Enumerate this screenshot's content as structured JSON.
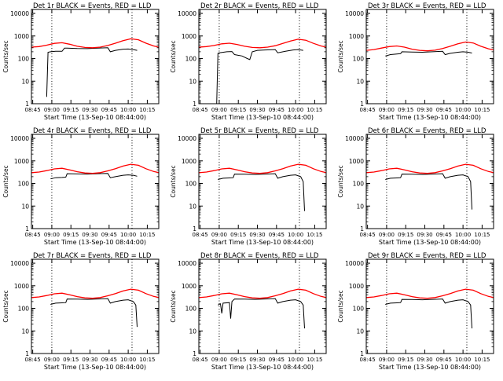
{
  "figure": {
    "panel_title_suffix": "BLACK = Events, RED = LLD",
    "ylabel": "Counts/sec",
    "xlabel": "Start Time (13-Sep-10 08:44:00)",
    "y_ticks": [
      "1",
      "10",
      "100",
      "1000",
      "10000"
    ],
    "x_ticks": [
      "08:45",
      "09:00",
      "09:15",
      "09:30",
      "09:45",
      "10:00",
      "10:15"
    ],
    "colors": {
      "events": "#000000",
      "lld": "#ff0000",
      "axes": "#000000"
    }
  },
  "chart_data": [
    {
      "type": "line",
      "title": "Det 1r BLACK = Events, RED = LLD",
      "xlabel": "Start Time (13-Sep-10 08:44:00)",
      "ylabel": "Counts/sec",
      "ylim": [
        1,
        15000
      ],
      "y_scale": "log",
      "xlim": [
        "08:44",
        "10:24"
      ],
      "x_ticks": [
        "08:45",
        "09:00",
        "09:15",
        "09:30",
        "09:45",
        "10:00",
        "10:15"
      ],
      "vlines": [
        "09:00",
        "10:03"
      ],
      "series": [
        {
          "name": "BLACK = Events",
          "color": "#000000",
          "x": [
            "08:56",
            "08:57",
            "08:59",
            "09:03",
            "09:08",
            "09:10",
            "09:12",
            "09:20",
            "09:28",
            "09:36",
            "09:44",
            "09:46",
            "09:50",
            "09:56",
            "10:00",
            "10:04",
            "10:07"
          ],
          "y": [
            2,
            190,
            200,
            210,
            210,
            290,
            290,
            280,
            275,
            290,
            300,
            200,
            230,
            260,
            265,
            250,
            230
          ]
        },
        {
          "name": "RED = LLD",
          "color": "#ff0000",
          "x": [
            "08:44",
            "08:50",
            "08:56",
            "09:02",
            "09:08",
            "09:14",
            "09:20",
            "09:26",
            "09:32",
            "09:38",
            "09:44",
            "09:50",
            "09:56",
            "10:02",
            "10:08",
            "10:14",
            "10:20",
            "10:24"
          ],
          "y": [
            320,
            340,
            390,
            470,
            500,
            430,
            350,
            310,
            300,
            320,
            380,
            480,
            620,
            750,
            680,
            480,
            360,
            320
          ]
        }
      ]
    },
    {
      "type": "line",
      "title": "Det 2r BLACK = Events, RED = LLD",
      "xlabel": "Start Time (13-Sep-10 08:44:00)",
      "ylabel": "Counts/sec",
      "ylim": [
        1,
        15000
      ],
      "y_scale": "log",
      "xlim": [
        "08:44",
        "10:24"
      ],
      "x_ticks": [
        "08:45",
        "09:00",
        "09:15",
        "09:30",
        "09:45",
        "10:00",
        "10:15"
      ],
      "vlines": [
        "09:00",
        "10:03"
      ],
      "series": [
        {
          "name": "BLACK = Events",
          "color": "#000000",
          "x": [
            "08:58",
            "08:59",
            "09:00",
            "09:06",
            "09:10",
            "09:12",
            "09:18",
            "09:22",
            "09:24",
            "09:26",
            "09:30",
            "09:36",
            "09:44",
            "09:46",
            "09:52",
            "09:58",
            "10:02",
            "10:06"
          ],
          "y": [
            1,
            170,
            180,
            200,
            205,
            150,
            130,
            100,
            90,
            200,
            230,
            240,
            250,
            180,
            210,
            240,
            250,
            230
          ]
        },
        {
          "name": "RED = LLD",
          "color": "#ff0000",
          "x": [
            "08:44",
            "08:50",
            "08:56",
            "09:02",
            "09:08",
            "09:14",
            "09:20",
            "09:26",
            "09:32",
            "09:38",
            "09:44",
            "09:50",
            "09:56",
            "10:02",
            "10:08",
            "10:14",
            "10:20",
            "10:24"
          ],
          "y": [
            320,
            340,
            380,
            450,
            480,
            420,
            350,
            310,
            300,
            320,
            370,
            470,
            600,
            720,
            650,
            470,
            360,
            320
          ]
        }
      ]
    },
    {
      "type": "line",
      "title": "Det 3r BLACK = Events, RED = LLD",
      "xlabel": "Start Time (13-Sep-10 08:44:00)",
      "ylabel": "Counts/sec",
      "ylim": [
        1,
        15000
      ],
      "y_scale": "log",
      "xlim": [
        "08:44",
        "10:24"
      ],
      "x_ticks": [
        "08:45",
        "09:00",
        "09:15",
        "09:30",
        "09:45",
        "10:00",
        "10:15"
      ],
      "vlines": [
        "09:00",
        "10:03"
      ],
      "series": [
        {
          "name": "BLACK = Events",
          "color": "#000000",
          "x": [
            "08:59",
            "09:03",
            "09:08",
            "09:11",
            "09:12",
            "09:20",
            "09:28",
            "09:36",
            "09:44",
            "09:46",
            "09:50",
            "09:56",
            "10:00",
            "10:04",
            "10:07"
          ],
          "y": [
            130,
            150,
            160,
            165,
            200,
            195,
            190,
            200,
            210,
            150,
            170,
            190,
            200,
            190,
            175
          ]
        },
        {
          "name": "RED = LLD",
          "color": "#ff0000",
          "x": [
            "08:44",
            "08:50",
            "08:56",
            "09:02",
            "09:08",
            "09:14",
            "09:20",
            "09:26",
            "09:32",
            "09:38",
            "09:44",
            "09:50",
            "09:56",
            "10:02",
            "10:08",
            "10:14",
            "10:20",
            "10:24"
          ],
          "y": [
            230,
            250,
            290,
            340,
            360,
            320,
            260,
            230,
            220,
            235,
            280,
            350,
            450,
            540,
            490,
            350,
            270,
            240
          ]
        }
      ]
    },
    {
      "type": "line",
      "title": "Det 4r BLACK = Events, RED = LLD",
      "xlabel": "Start Time (13-Sep-10 08:44:00)",
      "ylabel": "Counts/sec",
      "ylim": [
        1,
        15000
      ],
      "y_scale": "log",
      "xlim": [
        "08:44",
        "10:24"
      ],
      "x_ticks": [
        "08:45",
        "09:00",
        "09:15",
        "09:30",
        "09:45",
        "10:00",
        "10:15"
      ],
      "vlines": [
        "09:00",
        "10:03"
      ],
      "series": [
        {
          "name": "BLACK = Events",
          "color": "#000000",
          "x": [
            "08:59",
            "09:03",
            "09:08",
            "09:11",
            "09:12",
            "09:20",
            "09:28",
            "09:36",
            "09:44",
            "09:46",
            "09:50",
            "09:56",
            "10:00",
            "10:04",
            "10:07"
          ],
          "y": [
            160,
            180,
            185,
            190,
            270,
            265,
            260,
            270,
            280,
            180,
            200,
            230,
            240,
            230,
            210
          ]
        },
        {
          "name": "RED = LLD",
          "color": "#ff0000",
          "x": [
            "08:44",
            "08:50",
            "08:56",
            "09:02",
            "09:08",
            "09:14",
            "09:20",
            "09:26",
            "09:32",
            "09:38",
            "09:44",
            "09:50",
            "09:56",
            "10:02",
            "10:08",
            "10:14",
            "10:20",
            "10:24"
          ],
          "y": [
            300,
            320,
            370,
            440,
            470,
            400,
            330,
            290,
            280,
            300,
            360,
            450,
            590,
            710,
            640,
            450,
            340,
            300
          ]
        }
      ]
    },
    {
      "type": "line",
      "title": "Det 5r BLACK = Events, RED = LLD",
      "xlabel": "Start Time (13-Sep-10 08:44:00)",
      "ylabel": "Counts/sec",
      "ylim": [
        1,
        15000
      ],
      "y_scale": "log",
      "xlim": [
        "08:44",
        "10:24"
      ],
      "x_ticks": [
        "08:45",
        "09:00",
        "09:15",
        "09:30",
        "09:45",
        "10:00",
        "10:15"
      ],
      "vlines": [
        "09:00",
        "10:03"
      ],
      "series": [
        {
          "name": "BLACK = Events",
          "color": "#000000",
          "x": [
            "08:59",
            "09:03",
            "09:08",
            "09:11",
            "09:12",
            "09:20",
            "09:28",
            "09:36",
            "09:44",
            "09:46",
            "09:50",
            "09:56",
            "10:00",
            "10:04",
            "10:06",
            "10:07"
          ],
          "y": [
            150,
            170,
            175,
            180,
            260,
            255,
            250,
            260,
            270,
            170,
            200,
            230,
            240,
            200,
            120,
            6
          ]
        },
        {
          "name": "RED = LLD",
          "color": "#ff0000",
          "x": [
            "08:44",
            "08:50",
            "08:56",
            "09:02",
            "09:08",
            "09:14",
            "09:20",
            "09:26",
            "09:32",
            "09:38",
            "09:44",
            "09:50",
            "09:56",
            "10:02",
            "10:08",
            "10:14",
            "10:20",
            "10:24"
          ],
          "y": [
            300,
            320,
            370,
            440,
            470,
            400,
            330,
            290,
            280,
            300,
            360,
            450,
            590,
            710,
            640,
            450,
            340,
            300
          ]
        }
      ]
    },
    {
      "type": "line",
      "title": "Det 6r BLACK = Events, RED = LLD",
      "xlabel": "Start Time (13-Sep-10 08:44:00)",
      "ylabel": "Counts/sec",
      "ylim": [
        1,
        15000
      ],
      "y_scale": "log",
      "xlim": [
        "08:44",
        "10:24"
      ],
      "x_ticks": [
        "08:45",
        "09:00",
        "09:15",
        "09:30",
        "09:45",
        "10:00",
        "10:15"
      ],
      "vlines": [
        "09:00",
        "10:03"
      ],
      "series": [
        {
          "name": "BLACK = Events",
          "color": "#000000",
          "x": [
            "08:59",
            "09:03",
            "09:08",
            "09:11",
            "09:12",
            "09:20",
            "09:28",
            "09:36",
            "09:44",
            "09:46",
            "09:50",
            "09:56",
            "10:00",
            "10:04",
            "10:06",
            "10:07"
          ],
          "y": [
            150,
            170,
            175,
            180,
            260,
            255,
            250,
            260,
            270,
            170,
            200,
            230,
            240,
            200,
            120,
            7
          ]
        },
        {
          "name": "RED = LLD",
          "color": "#ff0000",
          "x": [
            "08:44",
            "08:50",
            "08:56",
            "09:02",
            "09:08",
            "09:14",
            "09:20",
            "09:26",
            "09:32",
            "09:38",
            "09:44",
            "09:50",
            "09:56",
            "10:02",
            "10:08",
            "10:14",
            "10:20",
            "10:24"
          ],
          "y": [
            300,
            320,
            370,
            440,
            470,
            400,
            330,
            290,
            280,
            300,
            360,
            450,
            590,
            710,
            640,
            450,
            340,
            300
          ]
        }
      ]
    },
    {
      "type": "line",
      "title": "Det 7r BLACK = Events, RED = LLD",
      "xlabel": "Start Time (13-Sep-10 08:44:00)",
      "ylabel": "Counts/sec",
      "ylim": [
        1,
        15000
      ],
      "y_scale": "log",
      "xlim": [
        "08:44",
        "10:24"
      ],
      "x_ticks": [
        "08:45",
        "09:00",
        "09:15",
        "09:30",
        "09:45",
        "10:00",
        "10:15"
      ],
      "vlines": [
        "09:00",
        "10:03"
      ],
      "series": [
        {
          "name": "BLACK = Events",
          "color": "#000000",
          "x": [
            "08:59",
            "09:03",
            "09:08",
            "09:11",
            "09:12",
            "09:20",
            "09:28",
            "09:36",
            "09:44",
            "09:46",
            "09:50",
            "09:56",
            "10:00",
            "10:04",
            "10:06",
            "10:07"
          ],
          "y": [
            150,
            170,
            175,
            180,
            260,
            255,
            250,
            260,
            270,
            170,
            200,
            230,
            240,
            200,
            140,
            15
          ]
        },
        {
          "name": "RED = LLD",
          "color": "#ff0000",
          "x": [
            "08:44",
            "08:50",
            "08:56",
            "09:02",
            "09:08",
            "09:14",
            "09:20",
            "09:26",
            "09:32",
            "09:38",
            "09:44",
            "09:50",
            "09:56",
            "10:02",
            "10:08",
            "10:14",
            "10:20",
            "10:24"
          ],
          "y": [
            300,
            320,
            370,
            440,
            470,
            400,
            330,
            290,
            280,
            300,
            360,
            450,
            590,
            710,
            640,
            450,
            340,
            300
          ]
        }
      ]
    },
    {
      "type": "line",
      "title": "Det 8r BLACK = Events, RED = LLD",
      "xlabel": "Start Time (13-Sep-10 08:44:00)",
      "ylabel": "Counts/sec",
      "ylim": [
        1,
        15000
      ],
      "y_scale": "log",
      "xlim": [
        "08:44",
        "10:24"
      ],
      "x_ticks": [
        "08:45",
        "09:00",
        "09:15",
        "09:30",
        "09:45",
        "10:00",
        "10:15"
      ],
      "vlines": [
        "09:00",
        "10:03"
      ],
      "series": [
        {
          "name": "BLACK = Events",
          "color": "#000000",
          "x": [
            "08:59",
            "09:01",
            "09:02",
            "09:03",
            "09:08",
            "09:09",
            "09:10",
            "09:12",
            "09:20",
            "09:28",
            "09:36",
            "09:44",
            "09:46",
            "09:50",
            "09:56",
            "10:00",
            "10:04",
            "10:06",
            "10:07"
          ],
          "y": [
            140,
            160,
            60,
            170,
            180,
            35,
            200,
            260,
            255,
            250,
            260,
            270,
            170,
            200,
            230,
            240,
            200,
            140,
            13
          ]
        },
        {
          "name": "RED = LLD",
          "color": "#ff0000",
          "x": [
            "08:44",
            "08:50",
            "08:56",
            "09:02",
            "09:08",
            "09:14",
            "09:20",
            "09:26",
            "09:32",
            "09:38",
            "09:44",
            "09:50",
            "09:56",
            "10:02",
            "10:08",
            "10:14",
            "10:20",
            "10:24"
          ],
          "y": [
            300,
            320,
            370,
            440,
            470,
            400,
            330,
            290,
            280,
            300,
            360,
            450,
            590,
            710,
            640,
            450,
            340,
            300
          ]
        }
      ]
    },
    {
      "type": "line",
      "title": "Det 9r BLACK = Events, RED = LLD",
      "xlabel": "Start Time (13-Sep-10 08:44:00)",
      "ylabel": "Counts/sec",
      "ylim": [
        1,
        15000
      ],
      "y_scale": "log",
      "xlim": [
        "08:44",
        "10:24"
      ],
      "x_ticks": [
        "08:45",
        "09:00",
        "09:15",
        "09:30",
        "09:45",
        "10:00",
        "10:15"
      ],
      "vlines": [
        "09:00",
        "10:03"
      ],
      "series": [
        {
          "name": "BLACK = Events",
          "color": "#000000",
          "x": [
            "08:59",
            "09:03",
            "09:08",
            "09:11",
            "09:12",
            "09:20",
            "09:28",
            "09:36",
            "09:44",
            "09:46",
            "09:50",
            "09:56",
            "10:00",
            "10:04",
            "10:06",
            "10:07"
          ],
          "y": [
            150,
            170,
            175,
            180,
            250,
            245,
            240,
            250,
            260,
            170,
            200,
            230,
            240,
            200,
            140,
            13
          ]
        },
        {
          "name": "RED = LLD",
          "color": "#ff0000",
          "x": [
            "08:44",
            "08:50",
            "08:56",
            "09:02",
            "09:08",
            "09:14",
            "09:20",
            "09:26",
            "09:32",
            "09:38",
            "09:44",
            "09:50",
            "09:56",
            "10:02",
            "10:08",
            "10:14",
            "10:20",
            "10:24"
          ],
          "y": [
            300,
            320,
            370,
            440,
            470,
            400,
            330,
            290,
            280,
            300,
            360,
            450,
            590,
            710,
            640,
            450,
            340,
            300
          ]
        }
      ]
    }
  ]
}
